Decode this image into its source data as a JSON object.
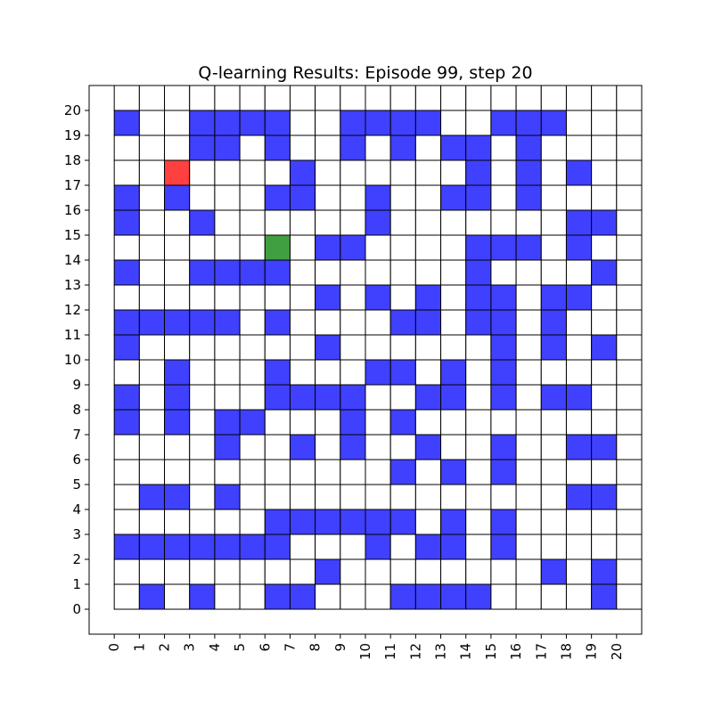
{
  "chart_data": {
    "type": "heatmap",
    "title": "Q-learning Results: Episode 99, step 20",
    "grid_size": 21,
    "xlim": [
      -1,
      21
    ],
    "ylim": [
      -1,
      21
    ],
    "x_ticks": [
      "0",
      "1",
      "2",
      "3",
      "4",
      "5",
      "6",
      "7",
      "8",
      "9",
      "10",
      "11",
      "12",
      "13",
      "14",
      "15",
      "16",
      "17",
      "18",
      "19",
      "20"
    ],
    "y_ticks": [
      "0",
      "1",
      "2",
      "3",
      "4",
      "5",
      "6",
      "7",
      "8",
      "9",
      "10",
      "11",
      "12",
      "13",
      "14",
      "15",
      "16",
      "17",
      "18",
      "19",
      "20"
    ],
    "grid": true,
    "colors": {
      "wall": "#4040ff",
      "agent": "#ff4040",
      "goal": "#40a040",
      "empty": "#ffffff",
      "grid_line": "#000000"
    },
    "walls": [
      [
        0,
        19
      ],
      [
        3,
        19
      ],
      [
        4,
        19
      ],
      [
        5,
        19
      ],
      [
        6,
        19
      ],
      [
        9,
        19
      ],
      [
        10,
        19
      ],
      [
        11,
        19
      ],
      [
        12,
        19
      ],
      [
        15,
        19
      ],
      [
        16,
        19
      ],
      [
        17,
        19
      ],
      [
        3,
        18
      ],
      [
        4,
        18
      ],
      [
        6,
        18
      ],
      [
        9,
        18
      ],
      [
        11,
        18
      ],
      [
        13,
        18
      ],
      [
        14,
        18
      ],
      [
        16,
        18
      ],
      [
        7,
        17
      ],
      [
        14,
        17
      ],
      [
        16,
        17
      ],
      [
        18,
        17
      ],
      [
        0,
        16
      ],
      [
        2,
        16
      ],
      [
        6,
        16
      ],
      [
        7,
        16
      ],
      [
        10,
        16
      ],
      [
        13,
        16
      ],
      [
        14,
        16
      ],
      [
        16,
        16
      ],
      [
        0,
        15
      ],
      [
        10,
        15
      ],
      [
        18,
        15
      ],
      [
        19,
        15
      ],
      [
        3,
        15
      ],
      [
        8,
        14
      ],
      [
        9,
        14
      ],
      [
        14,
        14
      ],
      [
        15,
        14
      ],
      [
        16,
        14
      ],
      [
        18,
        14
      ],
      [
        0,
        13
      ],
      [
        3,
        13
      ],
      [
        4,
        13
      ],
      [
        5,
        13
      ],
      [
        6,
        13
      ],
      [
        14,
        13
      ],
      [
        19,
        13
      ],
      [
        8,
        12
      ],
      [
        10,
        12
      ],
      [
        12,
        12
      ],
      [
        14,
        12
      ],
      [
        15,
        12
      ],
      [
        17,
        12
      ],
      [
        18,
        12
      ],
      [
        0,
        11
      ],
      [
        1,
        11
      ],
      [
        2,
        11
      ],
      [
        3,
        11
      ],
      [
        4,
        11
      ],
      [
        6,
        11
      ],
      [
        11,
        11
      ],
      [
        12,
        11
      ],
      [
        14,
        11
      ],
      [
        15,
        11
      ],
      [
        17,
        11
      ],
      [
        0,
        10
      ],
      [
        8,
        10
      ],
      [
        15,
        10
      ],
      [
        17,
        10
      ],
      [
        19,
        10
      ],
      [
        2,
        9
      ],
      [
        6,
        9
      ],
      [
        10,
        9
      ],
      [
        11,
        9
      ],
      [
        13,
        9
      ],
      [
        15,
        9
      ],
      [
        0,
        8
      ],
      [
        2,
        8
      ],
      [
        6,
        8
      ],
      [
        7,
        8
      ],
      [
        8,
        8
      ],
      [
        9,
        8
      ],
      [
        12,
        8
      ],
      [
        13,
        8
      ],
      [
        15,
        8
      ],
      [
        17,
        8
      ],
      [
        18,
        8
      ],
      [
        0,
        7
      ],
      [
        2,
        7
      ],
      [
        4,
        7
      ],
      [
        5,
        7
      ],
      [
        9,
        7
      ],
      [
        11,
        7
      ],
      [
        4,
        6
      ],
      [
        7,
        6
      ],
      [
        9,
        6
      ],
      [
        12,
        6
      ],
      [
        15,
        6
      ],
      [
        18,
        6
      ],
      [
        19,
        6
      ],
      [
        11,
        5
      ],
      [
        13,
        5
      ],
      [
        15,
        5
      ],
      [
        1,
        4
      ],
      [
        2,
        4
      ],
      [
        4,
        4
      ],
      [
        18,
        4
      ],
      [
        19,
        4
      ],
      [
        6,
        3
      ],
      [
        7,
        3
      ],
      [
        8,
        3
      ],
      [
        9,
        3
      ],
      [
        10,
        3
      ],
      [
        11,
        3
      ],
      [
        13,
        3
      ],
      [
        15,
        3
      ],
      [
        0,
        2
      ],
      [
        1,
        2
      ],
      [
        2,
        2
      ],
      [
        3,
        2
      ],
      [
        4,
        2
      ],
      [
        5,
        2
      ],
      [
        6,
        2
      ],
      [
        10,
        2
      ],
      [
        12,
        2
      ],
      [
        13,
        2
      ],
      [
        15,
        2
      ],
      [
        8,
        1
      ],
      [
        17,
        1
      ],
      [
        19,
        1
      ],
      [
        1,
        0
      ],
      [
        3,
        0
      ],
      [
        6,
        0
      ],
      [
        7,
        0
      ],
      [
        11,
        0
      ],
      [
        12,
        0
      ],
      [
        13,
        0
      ],
      [
        14,
        0
      ],
      [
        19,
        0
      ]
    ],
    "agent": [
      2,
      17
    ],
    "goal": [
      6,
      14
    ]
  }
}
